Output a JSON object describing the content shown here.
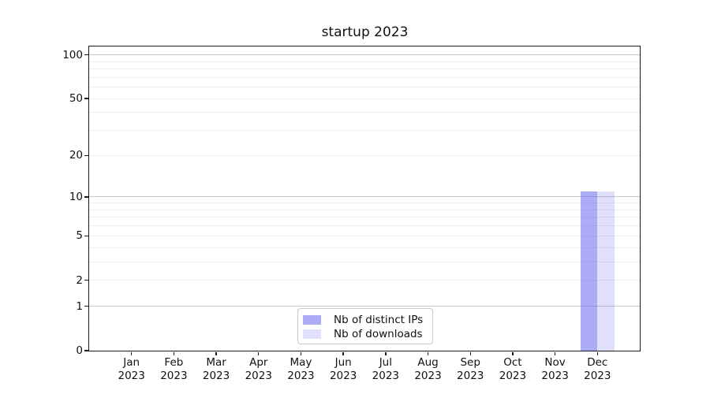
{
  "title": "startup 2023",
  "chart_data": {
    "type": "bar",
    "title": "startup 2023",
    "xlabel": "",
    "ylabel": "",
    "categories": [
      "Jan 2023",
      "Feb 2023",
      "Mar 2023",
      "Apr 2023",
      "May 2023",
      "Jun 2023",
      "Jul 2023",
      "Aug 2023",
      "Sep 2023",
      "Oct 2023",
      "Nov 2023",
      "Dec 2023"
    ],
    "series": [
      {
        "name": "Nb of distinct IPs",
        "color": "#6666ee8c",
        "values": [
          0,
          0,
          0,
          0,
          0,
          0,
          0,
          0,
          0,
          0,
          0,
          11
        ]
      },
      {
        "name": "Nb of downloads",
        "color": "#6666ee33",
        "values": [
          0,
          0,
          0,
          0,
          0,
          0,
          0,
          0,
          0,
          0,
          0,
          11
        ]
      }
    ],
    "yscale": "log1p",
    "ylim": [
      0,
      114
    ],
    "yticks": [
      0,
      1,
      2,
      5,
      10,
      20,
      50,
      100
    ],
    "major_gridlines": [
      1,
      10,
      100
    ],
    "minor_gridlines": [
      2,
      3,
      4,
      5,
      6,
      7,
      8,
      9,
      20,
      30,
      40,
      50,
      60,
      70,
      80,
      90
    ],
    "grid": "horizontal",
    "legend_position": "lower center",
    "bar_group_width": 0.8,
    "colors": {
      "axis": "#1a1a1a",
      "grid_major": "#c7c7c7",
      "grid_minor": "#ededed",
      "text": "#111111"
    }
  }
}
